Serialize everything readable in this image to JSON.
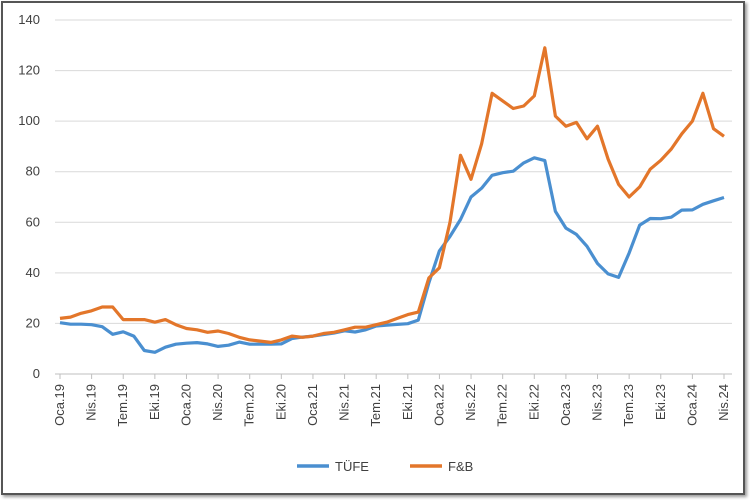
{
  "chart_data": {
    "type": "line",
    "title": "",
    "xlabel": "",
    "ylabel": "",
    "ylim": [
      0,
      140
    ],
    "yticks": [
      0,
      20,
      40,
      60,
      80,
      100,
      120,
      140
    ],
    "grid": true,
    "legend": "bottom",
    "xtick_labels": [
      "Oca.19",
      "Nis.19",
      "Tem.19",
      "Eki.19",
      "Oca.20",
      "Nis.20",
      "Tem.20",
      "Eki.20",
      "Oca.21",
      "Nis.21",
      "Tem.21",
      "Eki.21",
      "Oca.22",
      "Nis.22",
      "Tem.22",
      "Eki.22",
      "Oca.23",
      "Nis.23",
      "Tem.23",
      "Eki.23",
      "Oca.24",
      "Nis.24"
    ],
    "x_note": "monthly, Oca.19 to Nis.24",
    "series": [
      {
        "name": "TÜFE",
        "color": "#4a8fd0",
        "values": [
          20.3,
          19.7,
          19.7,
          19.5,
          18.7,
          15.7,
          16.7,
          15.0,
          9.3,
          8.6,
          10.6,
          11.8,
          12.2,
          12.4,
          11.9,
          10.9,
          11.4,
          12.6,
          11.8,
          11.8,
          11.8,
          11.9,
          14.0,
          14.6,
          15.0,
          15.6,
          16.2,
          17.1,
          16.6,
          17.5,
          19.0,
          19.3,
          19.6,
          19.9,
          21.3,
          36.1,
          48.7,
          54.4,
          61.1,
          70.0,
          73.5,
          78.6,
          79.6,
          80.2,
          83.5,
          85.5,
          84.4,
          64.3,
          57.7,
          55.2,
          50.5,
          43.7,
          39.6,
          38.2,
          47.8,
          58.9,
          61.5,
          61.4,
          62.0,
          64.8,
          64.9,
          67.1,
          68.5,
          69.8
        ]
      },
      {
        "name": "F&B",
        "color": "#e3762a",
        "values": [
          22,
          22.5,
          24,
          25,
          26.5,
          26.5,
          21.5,
          21.5,
          21.5,
          20.5,
          21.5,
          19.5,
          18,
          17.5,
          16.5,
          17,
          16,
          14.5,
          13.5,
          13,
          12.5,
          13.5,
          15,
          14.5,
          15,
          16,
          16.5,
          17.5,
          18.5,
          18.5,
          19.5,
          20.5,
          22,
          23.5,
          24.5,
          38,
          42,
          60,
          86.5,
          77,
          91,
          111,
          108,
          105,
          106,
          110,
          129,
          102,
          98,
          99.5,
          93,
          98,
          85,
          75,
          70,
          74,
          81,
          84.5,
          89,
          95,
          100,
          111,
          97,
          94
        ]
      }
    ]
  }
}
